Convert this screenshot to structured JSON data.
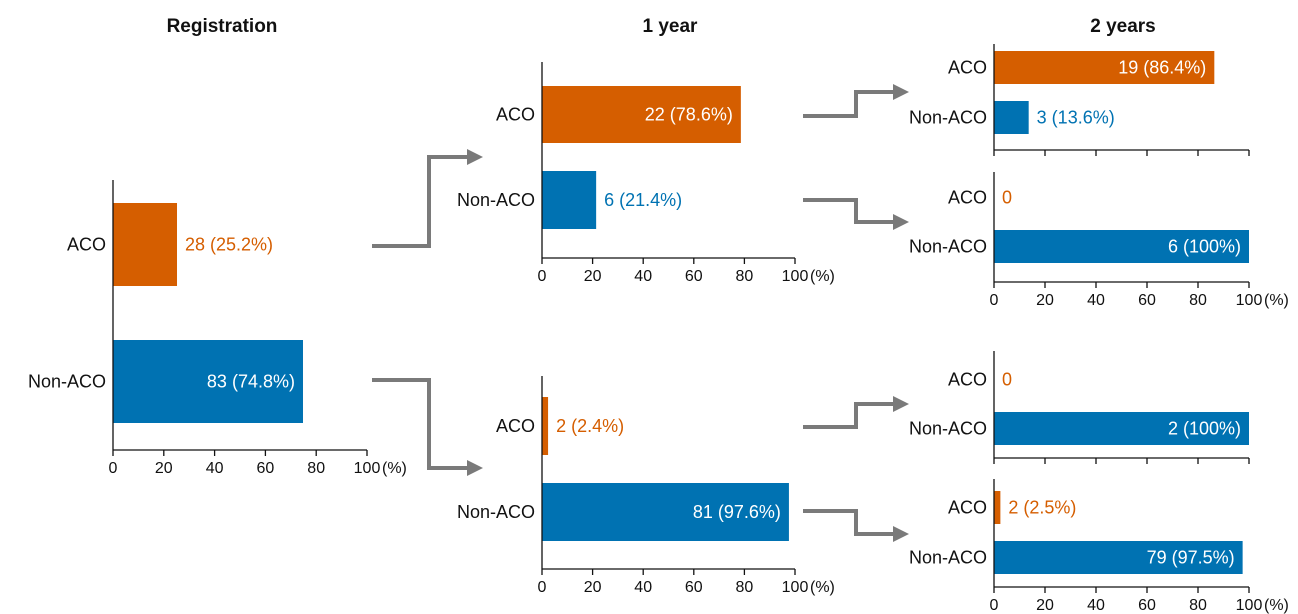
{
  "titles": {
    "registration": "Registration",
    "year1": "1 year",
    "year2": "2 years"
  },
  "colors": {
    "aco": "#d55e00",
    "non_aco": "#0072b2",
    "arrow": "#7a7a7a"
  },
  "unit_label": "(%)",
  "chart_data": [
    {
      "id": "registration",
      "type": "bar",
      "orientation": "horizontal",
      "categories": [
        "ACO",
        "Non-ACO"
      ],
      "values": [
        25.2,
        74.8
      ],
      "labels": [
        "28 (25.2%)",
        "83 (74.8%)"
      ],
      "xlim": [
        0,
        100
      ],
      "xticks": [
        0,
        20,
        40,
        60,
        80,
        100
      ],
      "tick_labels": [
        "0",
        "20",
        "40",
        "60",
        "80",
        "100"
      ],
      "xunit": "(%)"
    },
    {
      "id": "year1-from-aco",
      "type": "bar",
      "orientation": "horizontal",
      "categories": [
        "ACO",
        "Non-ACO"
      ],
      "values": [
        78.6,
        21.4
      ],
      "labels": [
        "22 (78.6%)",
        "6 (21.4%)"
      ],
      "xlim": [
        0,
        100
      ],
      "xticks": [
        0,
        20,
        40,
        60,
        80,
        100
      ],
      "tick_labels": [
        "0",
        "20",
        "40",
        "60",
        "80",
        "100"
      ],
      "xunit": "(%)"
    },
    {
      "id": "year1-from-nonaco",
      "type": "bar",
      "orientation": "horizontal",
      "categories": [
        "ACO",
        "Non-ACO"
      ],
      "values": [
        2.4,
        97.6
      ],
      "labels": [
        "2 (2.4%)",
        "81 (97.6%)"
      ],
      "xlim": [
        0,
        100
      ],
      "xticks": [
        0,
        20,
        40,
        60,
        80,
        100
      ],
      "tick_labels": [
        "0",
        "20",
        "40",
        "60",
        "80",
        "100"
      ],
      "xunit": "(%)"
    },
    {
      "id": "year2-aco-aco",
      "type": "bar",
      "orientation": "horizontal",
      "categories": [
        "ACO",
        "Non-ACO"
      ],
      "values": [
        86.4,
        13.6
      ],
      "labels": [
        "19 (86.4%)",
        "3 (13.6%)"
      ],
      "xlim": [
        0,
        100
      ],
      "xticks": [
        0,
        20,
        40,
        60,
        80,
        100
      ],
      "tick_labels": [],
      "xunit": ""
    },
    {
      "id": "year2-aco-nonaco",
      "type": "bar",
      "orientation": "horizontal",
      "categories": [
        "ACO",
        "Non-ACO"
      ],
      "values": [
        0,
        100
      ],
      "labels": [
        "0",
        "6 (100%)"
      ],
      "xlim": [
        0,
        100
      ],
      "xticks": [
        0,
        20,
        40,
        60,
        80,
        100
      ],
      "tick_labels": [
        "0",
        "20",
        "40",
        "60",
        "80",
        "100"
      ],
      "xunit": "(%)"
    },
    {
      "id": "year2-nonaco-aco",
      "type": "bar",
      "orientation": "horizontal",
      "categories": [
        "ACO",
        "Non-ACO"
      ],
      "values": [
        0,
        100
      ],
      "labels": [
        "0",
        "2 (100%)"
      ],
      "xlim": [
        0,
        100
      ],
      "xticks": [
        0,
        20,
        40,
        60,
        80,
        100
      ],
      "tick_labels": [],
      "xunit": ""
    },
    {
      "id": "year2-nonaco-nonaco",
      "type": "bar",
      "orientation": "horizontal",
      "categories": [
        "ACO",
        "Non-ACO"
      ],
      "values": [
        2.5,
        97.5
      ],
      "labels": [
        "2 (2.5%)",
        "79 (97.5%)"
      ],
      "xlim": [
        0,
        100
      ],
      "xticks": [
        0,
        20,
        40,
        60,
        80,
        100
      ],
      "tick_labels": [
        "0",
        "20",
        "40",
        "60",
        "80",
        "100"
      ],
      "xunit": "(%)"
    }
  ]
}
